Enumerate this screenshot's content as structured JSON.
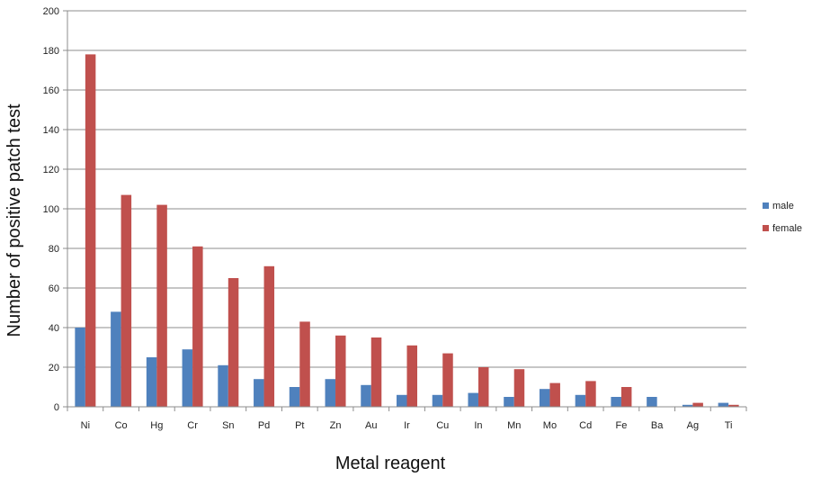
{
  "chart_data": {
    "type": "bar",
    "title": "",
    "xlabel": "Metal reagent",
    "ylabel": "Number of positive patch test",
    "ylim": [
      0,
      200
    ],
    "yticks": [
      0,
      20,
      40,
      60,
      80,
      100,
      120,
      140,
      160,
      180,
      200
    ],
    "grid": true,
    "legend_position": "right",
    "categories": [
      "Ni",
      "Co",
      "Hg",
      "Cr",
      "Sn",
      "Pd",
      "Pt",
      "Zn",
      "Au",
      "Ir",
      "Cu",
      "In",
      "Mn",
      "Mo",
      "Cd",
      "Fe",
      "Ba",
      "Ag",
      "Ti"
    ],
    "series": [
      {
        "name": "male",
        "color": "#4f81bd",
        "values": [
          40,
          48,
          25,
          29,
          21,
          14,
          10,
          14,
          11,
          6,
          6,
          7,
          5,
          9,
          6,
          5,
          5,
          1,
          2
        ]
      },
      {
        "name": "female",
        "color": "#c0504d",
        "values": [
          178,
          107,
          102,
          81,
          65,
          71,
          43,
          36,
          35,
          31,
          27,
          20,
          19,
          12,
          13,
          10,
          0,
          2,
          1
        ]
      }
    ]
  }
}
